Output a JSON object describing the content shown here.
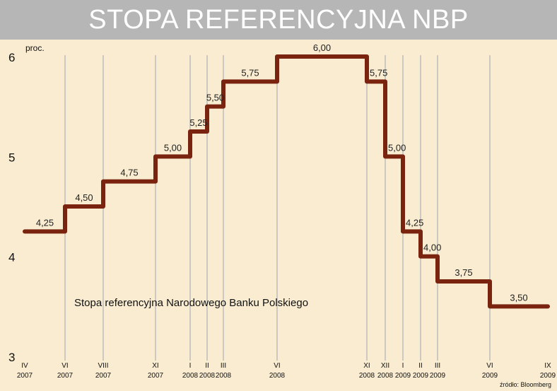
{
  "chart_data": {
    "type": "line",
    "title": "STOPA REFERENCYJNA NBP",
    "unit_label": "proc.",
    "annotation": "Stopa referencyjna Narodowego Banku Polskiego",
    "source": "źródło: Bloomberg",
    "ylim": [
      3,
      6
    ],
    "yticks": [
      "3",
      "4",
      "5",
      "6"
    ],
    "line_color": "#7a2410",
    "grid": "vertical lines at rate changes",
    "x_labels": [
      {
        "m": "IV",
        "y": "2007"
      },
      {
        "m": "VI",
        "y": "2007"
      },
      {
        "m": "VIII",
        "y": "2007"
      },
      {
        "m": "XI",
        "y": "2007"
      },
      {
        "m": "I",
        "y": "2008"
      },
      {
        "m": "II",
        "y": "2008"
      },
      {
        "m": "III",
        "y": "2008"
      },
      {
        "m": "VI",
        "y": "2008"
      },
      {
        "m": "XI",
        "y": "2008"
      },
      {
        "m": "XII",
        "y": "2008"
      },
      {
        "m": "I",
        "y": "2009"
      },
      {
        "m": "II",
        "y": "2009"
      },
      {
        "m": "III",
        "y": "2009"
      },
      {
        "m": "VI",
        "y": "2009"
      },
      {
        "m": "IX",
        "y": "2009"
      }
    ],
    "steps": [
      {
        "value": 4.25,
        "label": "4,25"
      },
      {
        "value": 4.5,
        "label": "4,50"
      },
      {
        "value": 4.75,
        "label": "4,75"
      },
      {
        "value": 5.0,
        "label": "5,00"
      },
      {
        "value": 5.25,
        "label": "5,25"
      },
      {
        "value": 5.5,
        "label": "5,50"
      },
      {
        "value": 5.75,
        "label": "5,75"
      },
      {
        "value": 6.0,
        "label": "6,00"
      },
      {
        "value": 5.75,
        "label": "5,75"
      },
      {
        "value": 5.0,
        "label": "5,00"
      },
      {
        "value": 4.25,
        "label": "4,25"
      },
      {
        "value": 4.0,
        "label": "4,00"
      },
      {
        "value": 3.75,
        "label": "3,75"
      },
      {
        "value": 3.5,
        "label": "3,50"
      }
    ]
  }
}
